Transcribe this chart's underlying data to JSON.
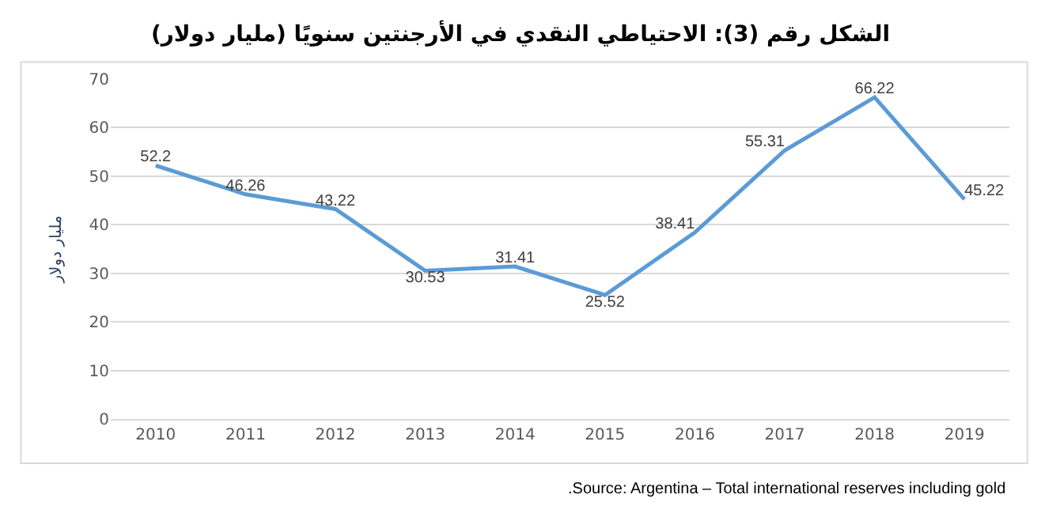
{
  "chart_data": {
    "type": "line",
    "title": "الشكل رقم (3): الاحتياطي النقدي في الأرجنتين سنويًا (مليار دولار)",
    "ylabel": "مليار دولار",
    "categories": [
      "2010",
      "2011",
      "2012",
      "2013",
      "2014",
      "2015",
      "2016",
      "2017",
      "2018",
      "2019"
    ],
    "series": [
      {
        "color": "#5b9bd5",
        "values": [
          52.2,
          46.26,
          43.22,
          30.53,
          31.41,
          25.52,
          38.41,
          55.31,
          66.22,
          45.22
        ]
      }
    ],
    "data_labels": true,
    "ylim": [
      0,
      70
    ],
    "yticks": [
      0,
      10,
      20,
      30,
      40,
      50,
      60,
      70
    ],
    "grid": "y",
    "legend": false,
    "marker": "none",
    "line_style": "solid",
    "annotations": [
      ".Source: Argentina – Total international reserves including gold"
    ]
  }
}
